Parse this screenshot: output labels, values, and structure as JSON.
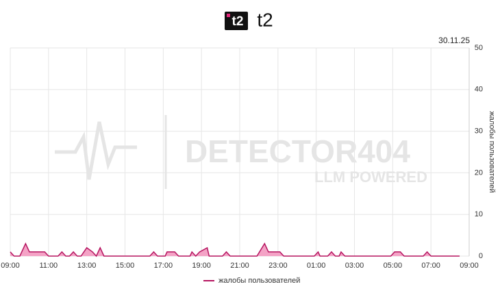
{
  "chart_data": {
    "type": "area",
    "title": "t2",
    "date_label": "30.11.25",
    "watermark": {
      "title": "DETECTOR404",
      "subtitle": "LLM POWERED"
    },
    "y_label": "жалобы пользователей",
    "series": [
      {
        "name": "жалобы пользователей",
        "color": "#b5135f",
        "fill": "#f4a3c6",
        "x": [
          9.0,
          9.2,
          9.5,
          9.8,
          10.0,
          10.8,
          11.0,
          11.5,
          11.7,
          11.9,
          12.1,
          12.3,
          12.5,
          12.7,
          13.0,
          13.3,
          13.5,
          13.7,
          13.9,
          16.3,
          16.5,
          16.7,
          17.1,
          17.2,
          17.6,
          17.8,
          18.4,
          18.5,
          18.7,
          18.9,
          19.3,
          19.4,
          20.1,
          20.3,
          20.5,
          21.9,
          22.3,
          22.5,
          23.1,
          23.3,
          24.9,
          25.1,
          25.2,
          25.6,
          25.8,
          26.0,
          26.2,
          26.3,
          26.5,
          28.9,
          29.1,
          29.4,
          29.6,
          30.6,
          30.8,
          31.0,
          32.5
        ],
        "values": [
          1,
          0,
          0,
          3,
          1,
          1,
          0,
          0,
          1,
          0,
          0,
          1,
          0,
          0,
          2,
          1,
          0,
          2,
          0,
          0,
          1,
          0,
          0,
          1,
          1,
          0,
          0,
          1,
          0,
          1,
          2,
          0,
          0,
          1,
          0,
          0,
          3,
          1,
          1,
          0,
          0,
          1,
          0,
          0,
          1,
          0,
          0,
          1,
          0,
          0,
          1,
          1,
          0,
          0,
          1,
          0,
          0
        ]
      }
    ],
    "xlim": [
      9,
      33
    ],
    "xticks": [
      {
        "value": 9,
        "label": "09:00"
      },
      {
        "value": 11,
        "label": "11:00"
      },
      {
        "value": 13,
        "label": "13:00"
      },
      {
        "value": 15,
        "label": "15:00"
      },
      {
        "value": 17,
        "label": "17:00"
      },
      {
        "value": 19,
        "label": "19:00"
      },
      {
        "value": 21,
        "label": "21:00"
      },
      {
        "value": 23,
        "label": "23:00"
      },
      {
        "value": 25,
        "label": "01:00"
      },
      {
        "value": 27,
        "label": "03:00"
      },
      {
        "value": 29,
        "label": "05:00"
      },
      {
        "value": 31,
        "label": "07:00"
      },
      {
        "value": 33,
        "label": "09:00"
      }
    ],
    "ylim": [
      0,
      50
    ],
    "yticks": [
      0,
      10,
      20,
      30,
      40,
      50
    ],
    "grid": true,
    "legend": "bottom"
  }
}
